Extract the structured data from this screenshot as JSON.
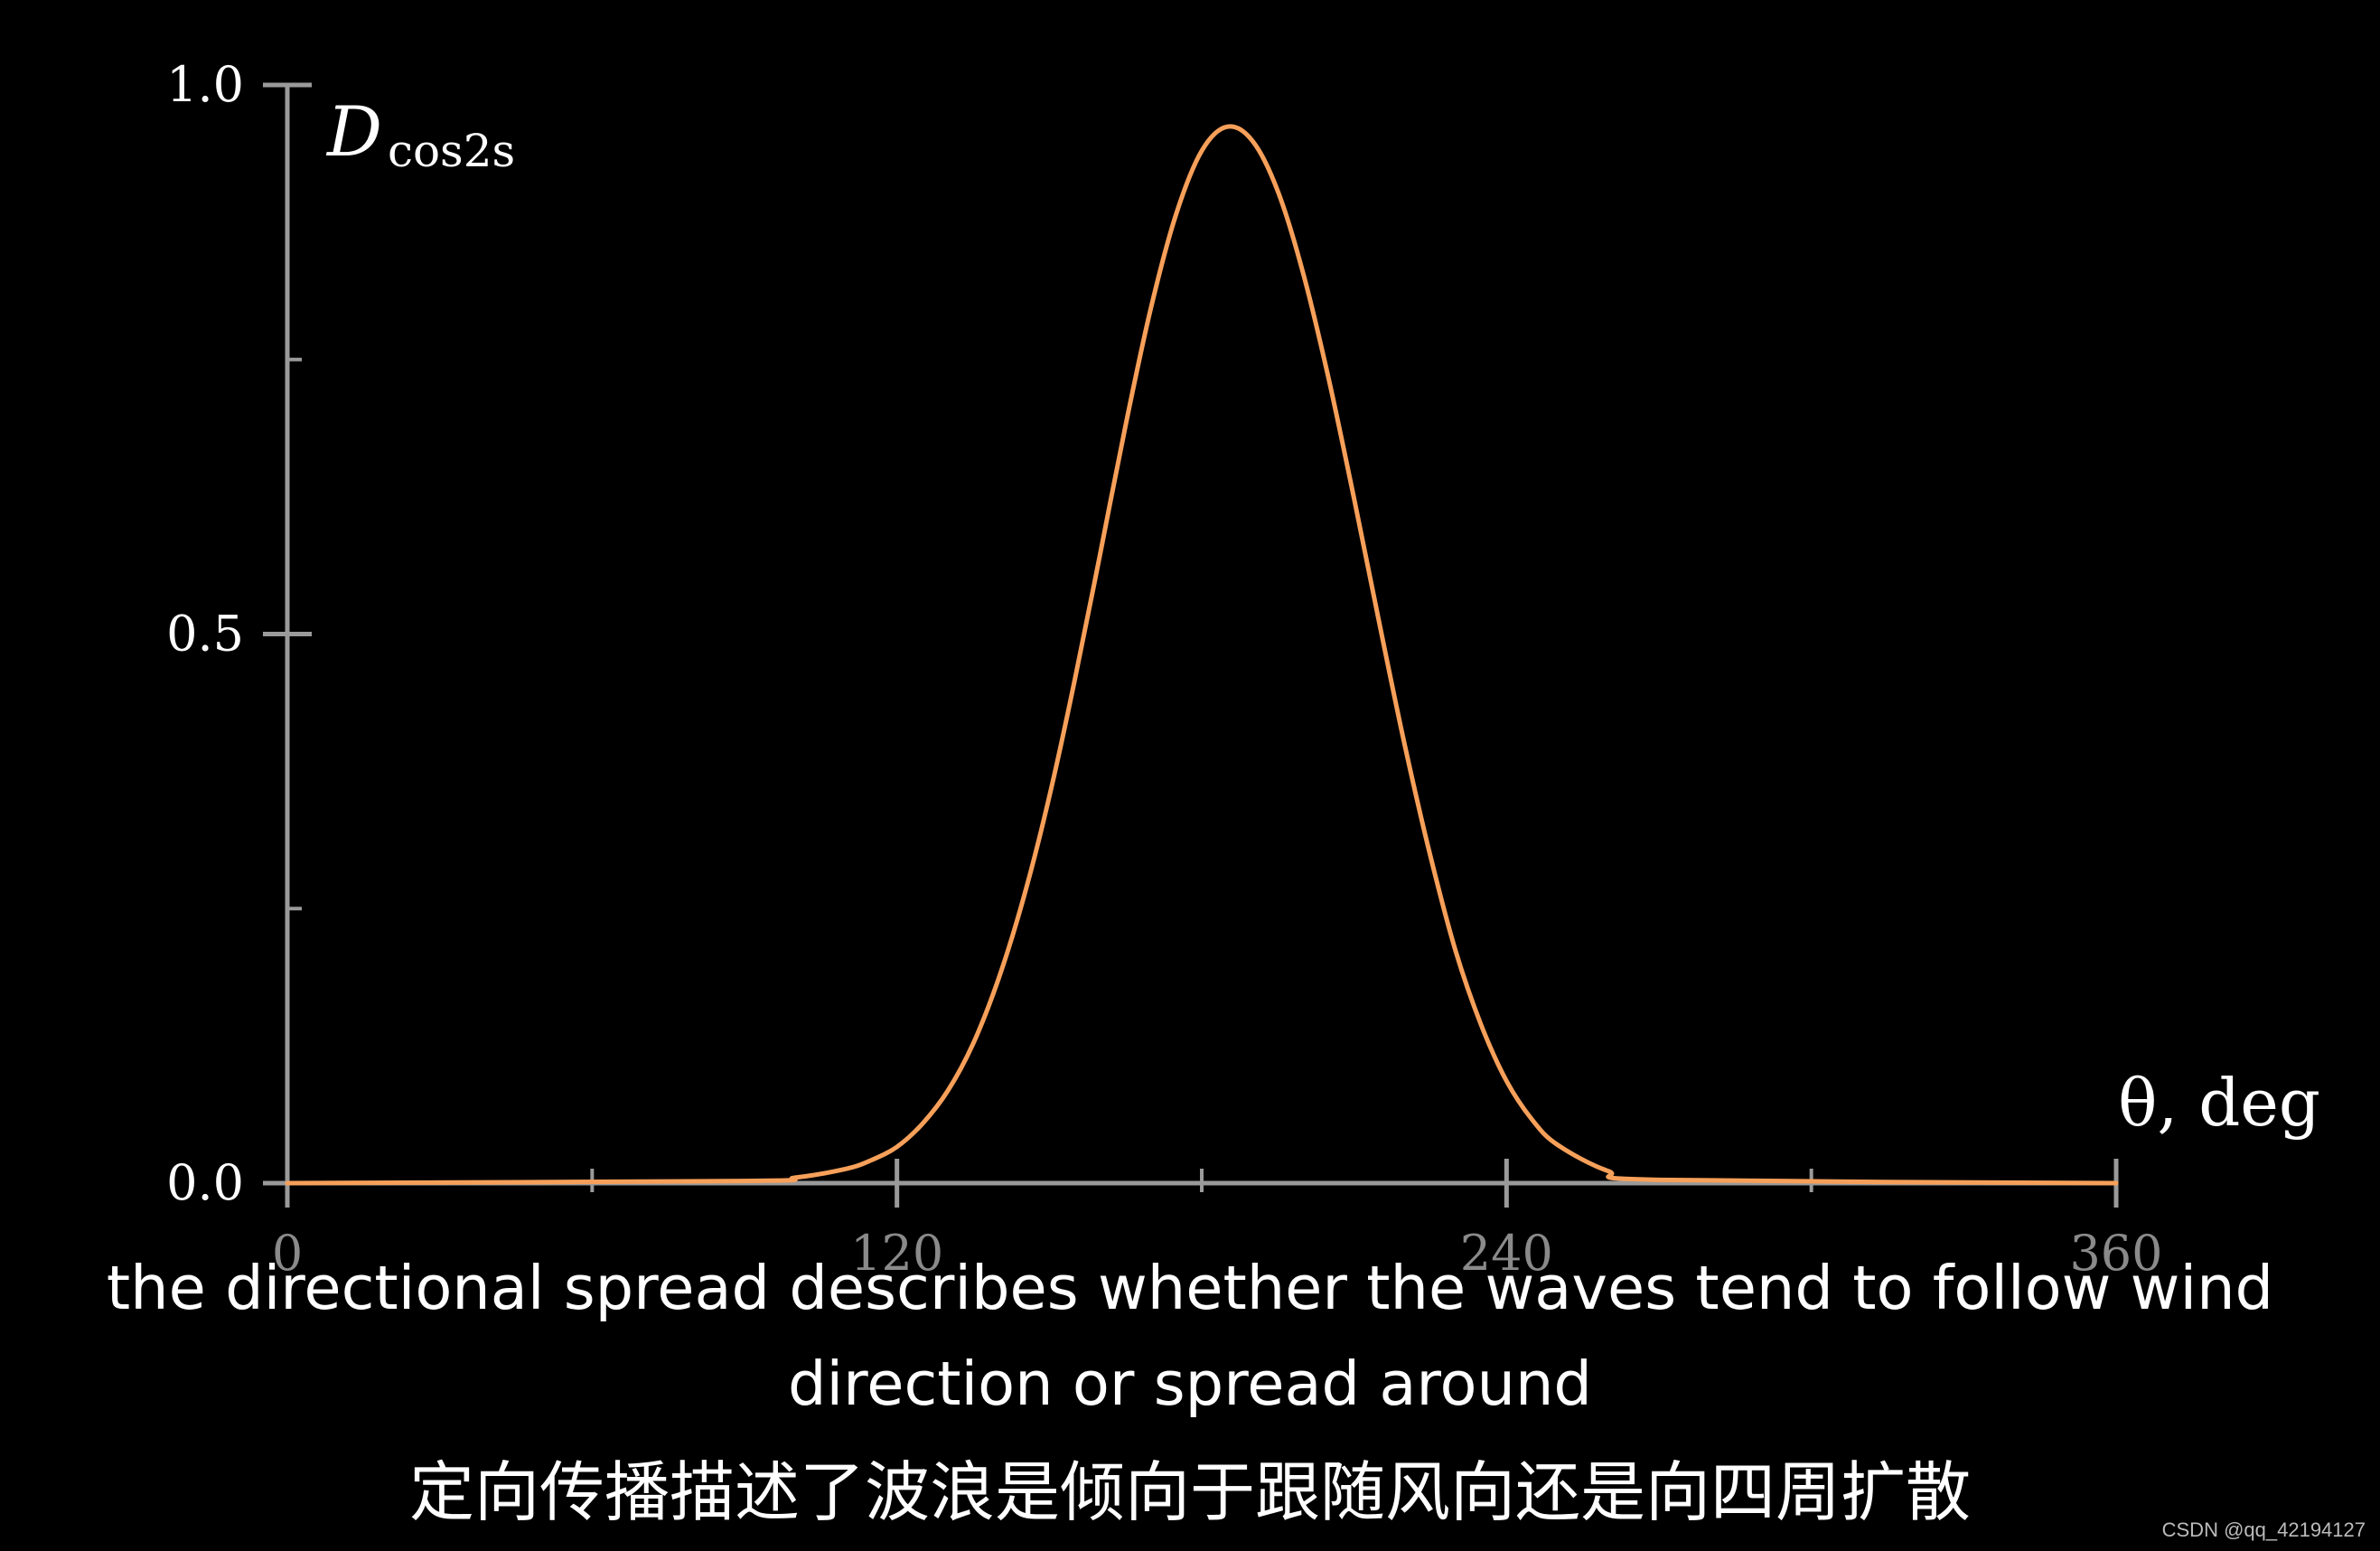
{
  "chart_data": {
    "type": "line",
    "title": "",
    "ylabel_main": "D",
    "ylabel_sub": "cos2s",
    "xlabel": "θ, deg",
    "xlim": [
      0,
      360
    ],
    "ylim": [
      0,
      1.0
    ],
    "x_ticks_major": [
      0,
      120,
      240,
      360
    ],
    "x_tick_labels": [
      "0",
      "120",
      "240",
      "360"
    ],
    "x_ticks_minor": [
      60,
      180,
      300
    ],
    "y_ticks_major": [
      0.0,
      0.5,
      1.0
    ],
    "y_tick_labels": [
      "0.0",
      "0.5",
      "1.0"
    ],
    "y_ticks_minor": [
      0.25,
      0.75
    ],
    "grid": false,
    "colors": {
      "line": "#f7a05a",
      "axis": "#9a9a9a",
      "background": "#000000"
    },
    "series": [
      {
        "x": [
          0,
          90,
          100,
          110,
          115,
          120,
          125,
          130,
          135,
          140,
          145,
          150,
          155,
          160,
          165,
          170,
          175,
          180,
          185,
          190,
          195,
          200,
          205,
          210,
          215,
          220,
          225,
          230,
          235,
          240,
          245,
          250,
          260,
          270,
          360
        ],
        "values": [
          0.0,
          0.002,
          0.005,
          0.013,
          0.021,
          0.033,
          0.054,
          0.084,
          0.127,
          0.186,
          0.261,
          0.352,
          0.458,
          0.573,
          0.69,
          0.797,
          0.883,
          0.94,
          0.962,
          0.949,
          0.903,
          0.828,
          0.732,
          0.623,
          0.509,
          0.398,
          0.298,
          0.211,
          0.144,
          0.093,
          0.058,
          0.035,
          0.011,
          0.003,
          0.0
        ]
      }
    ]
  },
  "subtitles": {
    "english": "the directional spread describes whether the waves tend to follow wind direction or spread around",
    "chinese": "定向传播描述了波浪是倾向于跟随风向还是向四周扩散"
  },
  "watermark": "CSDN @qq_42194127"
}
